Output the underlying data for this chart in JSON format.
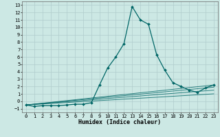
{
  "xlabel": "Humidex (Indice chaleur)",
  "ylabel": "",
  "background_color": "#cce8e4",
  "grid_color": "#b0cccc",
  "line_color": "#006666",
  "xlim": [
    -0.5,
    23.5
  ],
  "ylim": [
    -1.5,
    13.5
  ],
  "xticks": [
    0,
    1,
    2,
    3,
    4,
    5,
    6,
    7,
    8,
    9,
    10,
    11,
    12,
    13,
    14,
    15,
    16,
    17,
    18,
    19,
    20,
    21,
    22,
    23
  ],
  "yticks": [
    -1,
    0,
    1,
    2,
    3,
    4,
    5,
    6,
    7,
    8,
    9,
    10,
    11,
    12,
    13
  ],
  "series": [
    [
      0,
      -0.5
    ],
    [
      1,
      -0.7
    ],
    [
      2,
      -0.6
    ],
    [
      3,
      -0.6
    ],
    [
      4,
      -0.6
    ],
    [
      5,
      -0.5
    ],
    [
      6,
      -0.4
    ],
    [
      7,
      -0.4
    ],
    [
      8,
      -0.2
    ],
    [
      9,
      2.2
    ],
    [
      10,
      4.5
    ],
    [
      11,
      6.0
    ],
    [
      12,
      7.8
    ],
    [
      13,
      12.8
    ],
    [
      14,
      11.0
    ],
    [
      15,
      10.4
    ],
    [
      16,
      6.3
    ],
    [
      17,
      4.2
    ],
    [
      18,
      2.5
    ],
    [
      19,
      2.0
    ],
    [
      20,
      1.5
    ],
    [
      21,
      1.2
    ],
    [
      22,
      1.8
    ],
    [
      23,
      2.2
    ]
  ],
  "flat_series": [
    [
      [
        0,
        23
      ],
      [
        -0.5,
        2.2
      ]
    ],
    [
      [
        0,
        23
      ],
      [
        -0.5,
        1.9
      ]
    ],
    [
      [
        0,
        23
      ],
      [
        -0.5,
        1.5
      ]
    ],
    [
      [
        0,
        23
      ],
      [
        -0.5,
        1.0
      ]
    ]
  ],
  "title_fontsize": 6,
  "tick_fontsize": 5,
  "xlabel_fontsize": 6
}
